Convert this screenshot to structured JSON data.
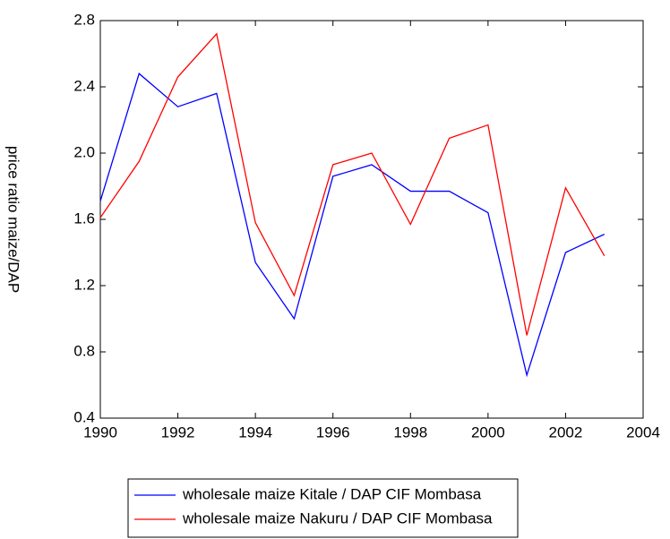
{
  "chart_data": {
    "type": "line",
    "y_label": "price ratio maize/DAP",
    "x": [
      1990,
      1991,
      1992,
      1993,
      1994,
      1995,
      1996,
      1997,
      1998,
      1999,
      2000,
      2001,
      2002,
      2003
    ],
    "series": [
      {
        "name": "wholesale maize Kitale / DAP CIF Mombasa",
        "color": "#0000ff",
        "values": [
          1.71,
          2.48,
          2.28,
          2.36,
          1.34,
          1.0,
          1.86,
          1.93,
          1.77,
          1.77,
          1.64,
          0.66,
          1.4,
          1.51
        ]
      },
      {
        "name": "wholesale maize Nakuru / DAP CIF Mombasa",
        "color": "#ff0000",
        "values": [
          1.61,
          1.95,
          2.46,
          2.72,
          1.58,
          1.14,
          1.93,
          2.0,
          1.57,
          2.09,
          2.17,
          0.9,
          1.79,
          1.38
        ]
      }
    ],
    "xlim": [
      1990,
      2004
    ],
    "xticks": [
      1990,
      1992,
      1994,
      1996,
      1998,
      2000,
      2002,
      2004
    ],
    "ylim": [
      0.4,
      2.8
    ],
    "yticks": [
      0.4,
      0.8,
      1.2,
      1.6,
      {
        "value": 2,
        "label": "2.0"
      },
      2.4,
      2.8
    ]
  }
}
